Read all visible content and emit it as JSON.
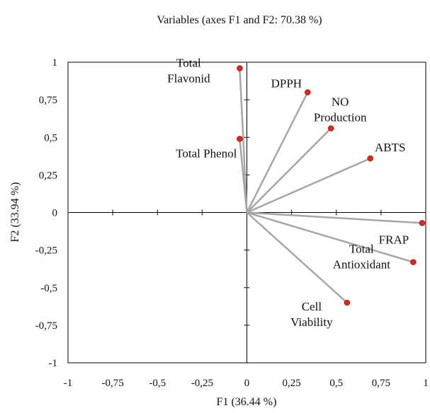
{
  "chart_data": {
    "type": "scatter",
    "title": "Variables (axes F1 and F2: 70.38 %)",
    "xlabel": "F1 (36.44 %)",
    "ylabel": "F2 (33.94 %)",
    "xlim": [
      -1,
      1
    ],
    "ylim": [
      -1,
      1
    ],
    "x_ticks": [
      -1,
      -0.75,
      -0.5,
      -0.25,
      0,
      0.25,
      0.5,
      0.75,
      1
    ],
    "y_ticks": [
      -1,
      -0.75,
      -0.5,
      -0.25,
      0,
      0.25,
      0.5,
      0.75,
      1
    ],
    "x_tick_labels": [
      "-1",
      "-0,75",
      "-0,5",
      "-0,25",
      "0",
      "0,25",
      "0,5",
      "0,75",
      "1"
    ],
    "y_tick_labels": [
      "-1",
      "-0,75",
      "-0,5",
      "-0,25",
      "0",
      "0,25",
      "0,5",
      "0,75",
      "1"
    ],
    "grid": false,
    "colors": {
      "vector": "#a6a6a6",
      "marker": "#e0261f",
      "marker_edge": "#b01a14",
      "frame": "#000000"
    },
    "points": [
      {
        "label_lines": [
          "Total",
          "Flavonid"
        ],
        "x": -0.04,
        "y": 0.96
      },
      {
        "label_lines": [
          "DPPH"
        ],
        "x": 0.34,
        "y": 0.8
      },
      {
        "label_lines": [
          "NO",
          "Production"
        ],
        "x": 0.47,
        "y": 0.56
      },
      {
        "label_lines": [
          "Total Phenol"
        ],
        "x": -0.04,
        "y": 0.49
      },
      {
        "label_lines": [
          "ABTS"
        ],
        "x": 0.69,
        "y": 0.36
      },
      {
        "label_lines": [
          "FRAP"
        ],
        "x": 0.98,
        "y": -0.07
      },
      {
        "label_lines": [
          "Total",
          "Antioxidant"
        ],
        "x": 0.93,
        "y": -0.33
      },
      {
        "label_lines": [
          "Cell",
          "Viability"
        ],
        "x": 0.56,
        "y": -0.6
      }
    ]
  }
}
